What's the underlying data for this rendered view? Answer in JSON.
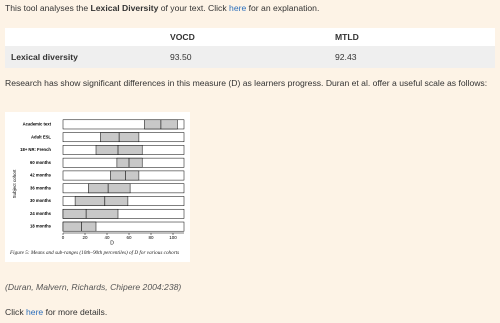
{
  "intro": {
    "before": "This tool analyses the",
    "bold": "Lexical Diversity",
    "middle": "of your text. Click",
    "link": "here",
    "after": "for an explanation."
  },
  "table": {
    "headers": [
      "VOCD",
      "MTLD"
    ],
    "rows": [
      [
        "Lexical diversity",
        "93.50",
        "92.43"
      ]
    ]
  },
  "paragraph": "Research has show significant differences in this measure (D) as learners progress. Duran et al. offer a useful scale as follows:",
  "chart_data": {
    "type": "range",
    "y_label": "Subject cohort",
    "x_label": "D",
    "categories": [
      "Academic text",
      "Adult ESL",
      "18+ NR: French",
      "60 months",
      "42 months",
      "36 months",
      "30 months",
      "24 months",
      "18 months"
    ],
    "lows": [
      74,
      34,
      30,
      49,
      43,
      23,
      11,
      0,
      0
    ],
    "means": [
      89,
      51,
      50,
      60,
      57,
      41,
      38,
      21,
      17
    ],
    "highs": [
      104,
      69,
      72,
      72,
      69,
      61,
      59,
      50,
      30
    ],
    "color": "#c8c8c8",
    "xlim": [
      0,
      110
    ],
    "xticks": [
      0,
      20,
      40,
      60,
      80,
      100
    ],
    "caption": "Figure 5: Means and sub-ranges (10th–90th percentiles) of D for various cohorts"
  },
  "citation": "(Duran, Malvern, Richards, Chipere 2004:238)",
  "footer": {
    "before": "Click",
    "link": "here",
    "after": "for more details."
  }
}
